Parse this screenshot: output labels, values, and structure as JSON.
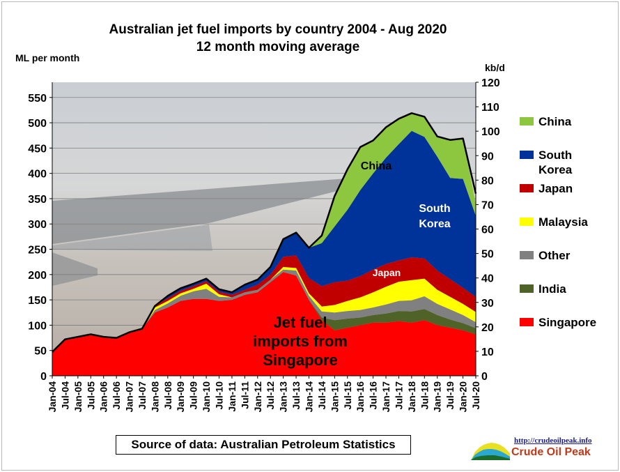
{
  "chart_data": {
    "type": "area",
    "stacked": true,
    "title": "Australian  jet fuel imports  by country  2004 - Aug 2020",
    "subtitle": "12 month  moving  average",
    "ylabel_left": "ML per month",
    "ylabel_right": "kb/d",
    "ylim": [
      0,
      580
    ],
    "yticks": [
      0,
      50,
      100,
      150,
      200,
      250,
      300,
      350,
      400,
      450,
      500,
      550
    ],
    "ylim_right": [
      0,
      120
    ],
    "yticks_right": [
      0,
      10,
      20,
      30,
      40,
      50,
      60,
      70,
      80,
      90,
      100,
      110,
      120
    ],
    "x_labels": [
      "Jan-04",
      "Jul-04",
      "Jan-05",
      "Jul-05",
      "Jan-06",
      "Jul-06",
      "Jan-07",
      "Jul-07",
      "Jan-08",
      "Jul-08",
      "Jan-09",
      "Jul-09",
      "Jan-10",
      "Jul-10",
      "Jan-11",
      "Jul-11",
      "Jan-12",
      "Jul-12",
      "Jan-13",
      "Jul-13",
      "Jan-14",
      "Jul-14",
      "Jan-15",
      "Jul-15",
      "Jan-16",
      "Jul-16",
      "Jan-17",
      "Jul-17",
      "Jan-18",
      "Jul-18",
      "Jan-19",
      "Jul-19",
      "Jan-20",
      "Jul-20"
    ],
    "stack_order": [
      "Singapore",
      "India",
      "Other",
      "Malaysia",
      "Japan",
      "South Korea",
      "China"
    ],
    "series": [
      {
        "name": "Singapore",
        "color": "#ff0000",
        "values": [
          47,
          72,
          77,
          82,
          77,
          75,
          86,
          93,
          125,
          135,
          148,
          152,
          152,
          148,
          150,
          160,
          165,
          185,
          205,
          198,
          150,
          110,
          90,
          95,
          100,
          105,
          105,
          108,
          105,
          110,
          100,
          95,
          90,
          82
        ]
      },
      {
        "name": "India",
        "color": "#4f6228",
        "values": [
          0,
          0,
          0,
          0,
          0,
          0,
          0,
          0,
          0,
          0,
          0,
          0,
          0,
          0,
          0,
          0,
          0,
          0,
          0,
          0,
          0,
          5,
          20,
          18,
          15,
          15,
          18,
          20,
          22,
          22,
          20,
          16,
          14,
          12
        ]
      },
      {
        "name": "Other",
        "color": "#808080",
        "values": [
          0,
          0,
          0,
          0,
          0,
          0,
          0,
          0,
          5,
          8,
          10,
          15,
          20,
          8,
          5,
          5,
          5,
          5,
          5,
          10,
          8,
          12,
          15,
          15,
          15,
          15,
          18,
          20,
          22,
          25,
          22,
          20,
          16,
          12
        ]
      },
      {
        "name": "Malaysia",
        "color": "#ffff00",
        "values": [
          0,
          0,
          0,
          0,
          0,
          0,
          0,
          0,
          5,
          5,
          5,
          5,
          10,
          5,
          0,
          0,
          0,
          0,
          5,
          5,
          5,
          10,
          15,
          20,
          25,
          30,
          35,
          38,
          40,
          35,
          28,
          25,
          22,
          20
        ]
      },
      {
        "name": "Japan",
        "color": "#c00000",
        "values": [
          0,
          0,
          0,
          0,
          0,
          0,
          0,
          0,
          3,
          5,
          5,
          5,
          5,
          5,
          5,
          5,
          10,
          10,
          20,
          25,
          30,
          40,
          45,
          40,
          42,
          45,
          45,
          42,
          45,
          40,
          38,
          35,
          32,
          30
        ]
      },
      {
        "name": "South Korea",
        "color": "#003399",
        "values": [
          0,
          0,
          0,
          0,
          0,
          0,
          0,
          0,
          0,
          5,
          5,
          5,
          5,
          5,
          5,
          10,
          10,
          15,
          35,
          45,
          60,
          85,
          110,
          140,
          170,
          190,
          210,
          230,
          250,
          240,
          225,
          200,
          215,
          160
        ]
      },
      {
        "name": "China",
        "color": "#8dc63f",
        "values": [
          0,
          0,
          0,
          0,
          0,
          0,
          0,
          0,
          0,
          0,
          0,
          0,
          0,
          0,
          0,
          0,
          0,
          0,
          0,
          0,
          0,
          15,
          60,
          80,
          85,
          65,
          60,
          50,
          35,
          40,
          40,
          75,
          80,
          24
        ]
      }
    ],
    "total_line": {
      "name": "Total",
      "color": "#000000",
      "values": [
        47,
        72,
        77,
        82,
        77,
        75,
        86,
        93,
        138,
        158,
        173,
        182,
        192,
        171,
        165,
        180,
        190,
        215,
        270,
        283,
        253,
        277,
        355,
        408,
        452,
        465,
        491,
        508,
        519,
        512,
        473,
        466,
        469,
        360
      ]
    },
    "legend": [
      "China",
      "South Korea",
      "Japan",
      "Malaysia",
      "Other",
      "India",
      "Singapore"
    ],
    "legend_placement": "right",
    "grid": true,
    "annotations": {
      "china": "China",
      "korea_line1": "South",
      "korea_line2": "Korea",
      "japan": "Japan",
      "singapore_line1": "Jet fuel",
      "singapore_line2": "imports from",
      "singapore_line3": "Singapore"
    }
  },
  "footer": {
    "source": "Source of data: Australian Petroleum Statistics",
    "brand_url": "http://crudeoilpeak.info",
    "brand_name": "Crude Oil Peak"
  }
}
